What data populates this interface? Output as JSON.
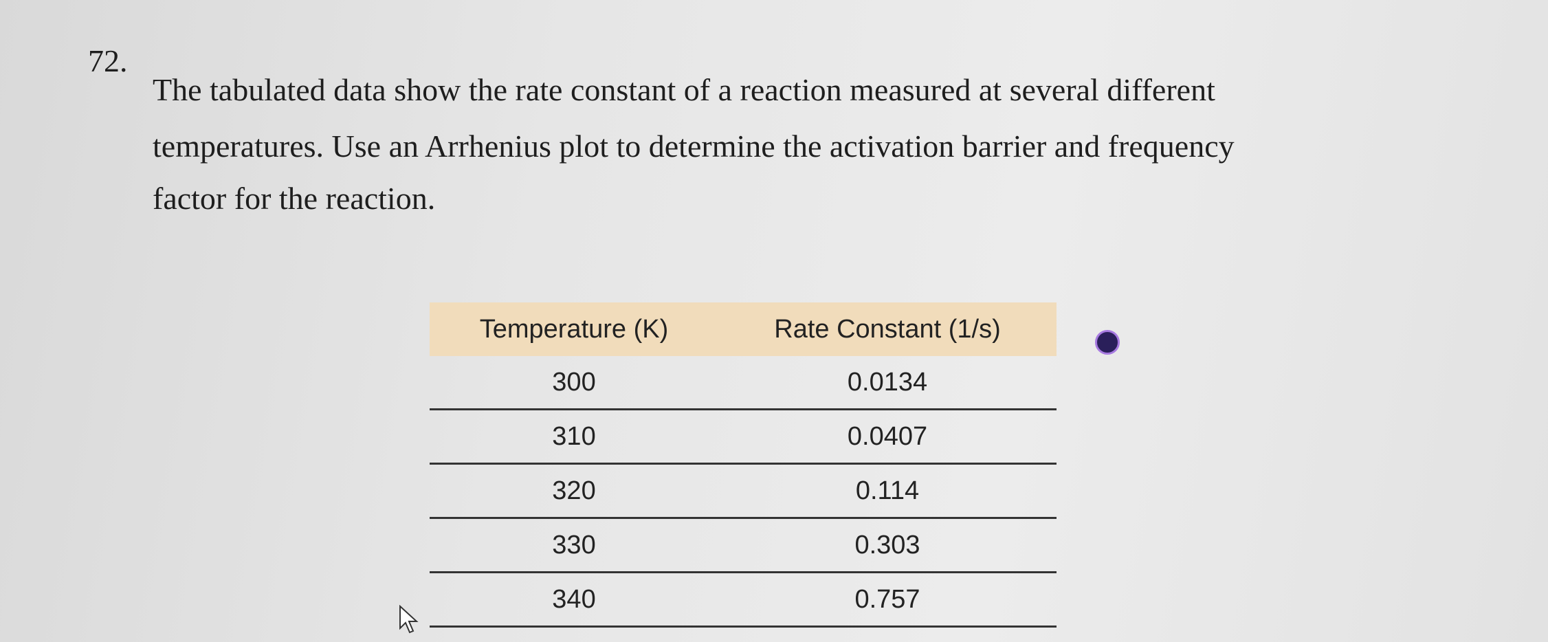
{
  "question": {
    "number": "72.",
    "lines": [
      "The tabulated data show the rate constant of a reaction measured at several different",
      "temperatures. Use an Arrhenius plot to determine the activation barrier and frequency",
      "factor for the reaction."
    ]
  },
  "table": {
    "headers": [
      "Temperature (K)",
      "Rate Constant (1/s)"
    ],
    "rows": [
      [
        "300",
        "0.0134"
      ],
      [
        "310",
        "0.0407"
      ],
      [
        "320",
        "0.114"
      ],
      [
        "330",
        "0.303"
      ],
      [
        "340",
        "0.757"
      ]
    ]
  }
}
